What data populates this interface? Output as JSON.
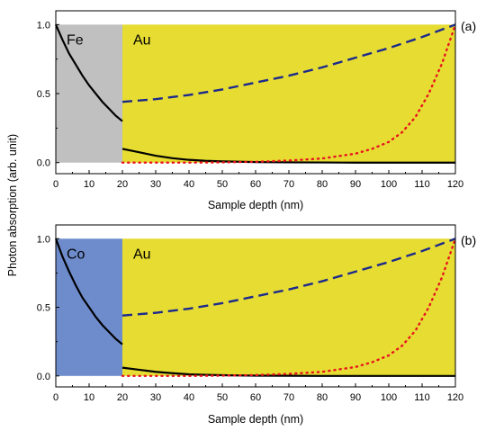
{
  "shared_ylabel": "Photon absorption (arb. unit)",
  "chart_data": [
    {
      "type": "line",
      "panel_label": "(a)",
      "xlabel": "Sample depth (nm)",
      "xlim": [
        0,
        120
      ],
      "ylim": [
        -0.08,
        1.1
      ],
      "x_ticks": [
        0,
        10,
        20,
        30,
        40,
        50,
        60,
        70,
        80,
        90,
        100,
        110,
        120
      ],
      "y_ticks": [
        0.0,
        0.5,
        1.0
      ],
      "y_tick_labels": [
        "0.0",
        "0.5",
        "1.0"
      ],
      "grid": false,
      "regions": [
        {
          "label": "Fe",
          "x_start": 0,
          "x_end": 20,
          "y_start": 0,
          "y_end": 1.0,
          "color": "#c0c0c0"
        },
        {
          "label": "Au",
          "x_start": 20,
          "x_end": 120,
          "y_start": 0,
          "y_end": 1.0,
          "color": "#e6dc32"
        }
      ],
      "series": [
        {
          "style": "solid",
          "color": "#000000",
          "x": [
            0,
            2,
            4,
            6,
            8,
            10,
            12,
            14,
            16,
            18,
            20
          ],
          "y": [
            1.0,
            0.89,
            0.79,
            0.71,
            0.63,
            0.56,
            0.5,
            0.44,
            0.39,
            0.34,
            0.3
          ]
        },
        {
          "style": "solid",
          "color": "#000000",
          "x": [
            20,
            25,
            30,
            35,
            40,
            45,
            50,
            60,
            70,
            80,
            90,
            100,
            110,
            120
          ],
          "y": [
            0.1,
            0.075,
            0.05,
            0.032,
            0.02,
            0.013,
            0.009,
            0.004,
            0.002,
            0.001,
            0.0,
            0.0,
            0.0,
            0.0
          ]
        },
        {
          "style": "dashed",
          "color": "#1c2a8c",
          "x": [
            20,
            30,
            40,
            50,
            60,
            70,
            80,
            90,
            100,
            110,
            120
          ],
          "y": [
            0.44,
            0.46,
            0.49,
            0.53,
            0.58,
            0.63,
            0.69,
            0.76,
            0.83,
            0.91,
            1.0
          ]
        },
        {
          "style": "dotted",
          "color": "#e8141e",
          "x": [
            20,
            30,
            40,
            50,
            60,
            70,
            80,
            90,
            95,
            100,
            104,
            108,
            112,
            116,
            120
          ],
          "y": [
            0.0,
            0.0,
            0.0,
            0.002,
            0.006,
            0.015,
            0.03,
            0.065,
            0.1,
            0.15,
            0.22,
            0.33,
            0.5,
            0.72,
            1.0
          ]
        }
      ]
    },
    {
      "type": "line",
      "panel_label": "(b)",
      "xlabel": "Sample depth (nm)",
      "xlim": [
        0,
        120
      ],
      "ylim": [
        -0.08,
        1.1
      ],
      "x_ticks": [
        0,
        10,
        20,
        30,
        40,
        50,
        60,
        70,
        80,
        90,
        100,
        110,
        120
      ],
      "y_ticks": [
        0.0,
        0.5,
        1.0
      ],
      "y_tick_labels": [
        "0.0",
        "0.5",
        "1.0"
      ],
      "grid": false,
      "regions": [
        {
          "label": "Co",
          "x_start": 0,
          "x_end": 20,
          "y_start": 0,
          "y_end": 1.0,
          "color": "#6e8ccc"
        },
        {
          "label": "Au",
          "x_start": 20,
          "x_end": 120,
          "y_start": 0,
          "y_end": 1.0,
          "color": "#e6dc32"
        }
      ],
      "series": [
        {
          "style": "solid",
          "color": "#000000",
          "x": [
            0,
            2,
            4,
            6,
            8,
            10,
            12,
            14,
            16,
            18,
            20
          ],
          "y": [
            1.0,
            0.87,
            0.76,
            0.66,
            0.57,
            0.5,
            0.43,
            0.37,
            0.32,
            0.27,
            0.23
          ]
        },
        {
          "style": "solid",
          "color": "#000000",
          "x": [
            20,
            25,
            30,
            35,
            40,
            45,
            50,
            60,
            70,
            80,
            90,
            100,
            110,
            120
          ],
          "y": [
            0.06,
            0.045,
            0.03,
            0.02,
            0.012,
            0.008,
            0.005,
            0.002,
            0.001,
            0.0,
            0.0,
            0.0,
            0.0,
            0.0
          ]
        },
        {
          "style": "dashed",
          "color": "#1c2a8c",
          "x": [
            20,
            30,
            40,
            50,
            60,
            70,
            80,
            90,
            100,
            110,
            120
          ],
          "y": [
            0.44,
            0.46,
            0.49,
            0.53,
            0.58,
            0.63,
            0.69,
            0.76,
            0.83,
            0.91,
            1.0
          ]
        },
        {
          "style": "dotted",
          "color": "#e8141e",
          "x": [
            20,
            30,
            40,
            50,
            60,
            70,
            80,
            90,
            95,
            100,
            104,
            108,
            112,
            116,
            120
          ],
          "y": [
            0.0,
            0.0,
            0.0,
            0.002,
            0.006,
            0.015,
            0.03,
            0.065,
            0.1,
            0.15,
            0.22,
            0.33,
            0.5,
            0.72,
            1.0
          ]
        }
      ]
    }
  ]
}
